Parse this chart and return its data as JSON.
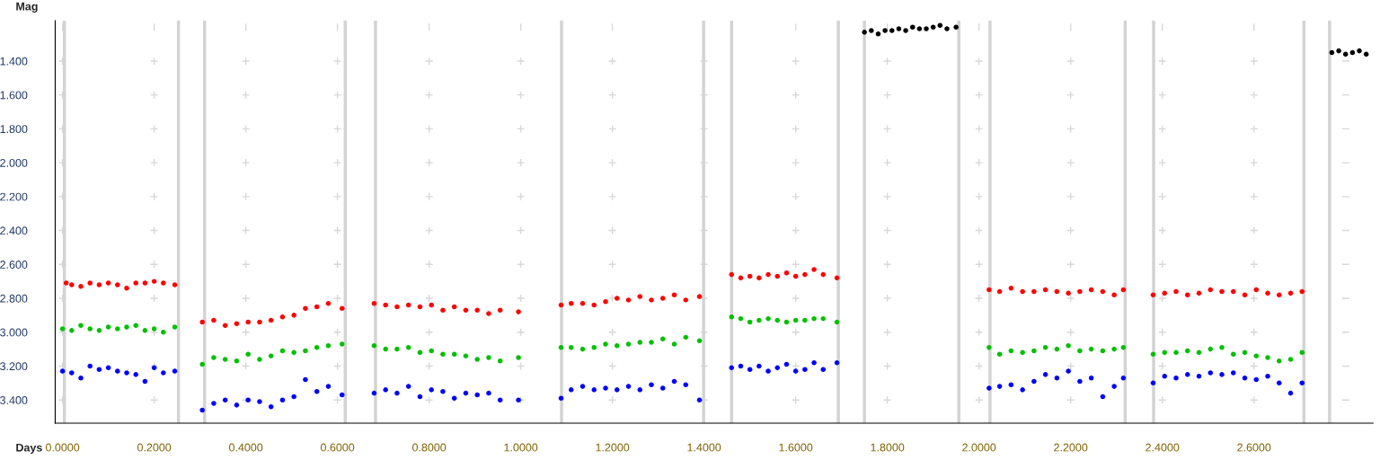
{
  "chart_data": {
    "type": "scatter",
    "xlabel": "Days",
    "ylabel": "Mag",
    "marker": "circle",
    "grid": true,
    "legend": false,
    "xlim": [
      -0.016,
      2.86
    ],
    "ylim": [
      3.537,
      1.162
    ],
    "xticks": [
      {
        "value": 0,
        "label": "0.0000"
      },
      {
        "value": 0.2,
        "label": "0.2000"
      },
      {
        "value": 0.4,
        "label": "0.4000"
      },
      {
        "value": 0.6,
        "label": "0.6000"
      },
      {
        "value": 0.8,
        "label": "0.8000"
      },
      {
        "value": 1.0,
        "label": "1.0000"
      },
      {
        "value": 1.2,
        "label": "1.2000"
      },
      {
        "value": 1.4,
        "label": "1.4000"
      },
      {
        "value": 1.6,
        "label": "1.6000"
      },
      {
        "value": 1.8,
        "label": "1.8000"
      },
      {
        "value": 2.0,
        "label": "2.0000"
      },
      {
        "value": 2.2,
        "label": "2.2000"
      },
      {
        "value": 2.4,
        "label": "2.4000"
      },
      {
        "value": 2.6,
        "label": "2.6000"
      }
    ],
    "yticks": [
      {
        "value": 1.4,
        "label": "1.400"
      },
      {
        "value": 1.6,
        "label": "1.600"
      },
      {
        "value": 1.8,
        "label": "1.800"
      },
      {
        "value": 2.0,
        "label": "2.000"
      },
      {
        "value": 2.2,
        "label": "2.200"
      },
      {
        "value": 2.4,
        "label": "2.400"
      },
      {
        "value": 2.6,
        "label": "2.600"
      },
      {
        "value": 2.8,
        "label": "2.800"
      },
      {
        "value": 3.0,
        "label": "3.000"
      },
      {
        "value": 3.2,
        "label": "3.200"
      },
      {
        "value": 3.4,
        "label": "3.400"
      }
    ],
    "ref_lines": [
      {
        "axis": "x",
        "value": 0.004,
        "color": "#d3d3d3"
      },
      {
        "axis": "x",
        "value": 0.253,
        "color": "#d3d3d3"
      },
      {
        "axis": "x",
        "value": 0.31,
        "color": "#d3d3d3"
      },
      {
        "axis": "x",
        "value": 0.617,
        "color": "#d3d3d3"
      },
      {
        "axis": "x",
        "value": 0.683,
        "color": "#d3d3d3"
      },
      {
        "axis": "x",
        "value": 1.089,
        "color": "#d3d3d3"
      },
      {
        "axis": "x",
        "value": 1.399,
        "color": "#d3d3d3"
      },
      {
        "axis": "x",
        "value": 1.46,
        "color": "#d3d3d3"
      },
      {
        "axis": "x",
        "value": 1.693,
        "color": "#d3d3d3"
      },
      {
        "axis": "x",
        "value": 1.75,
        "color": "#d3d3d3"
      },
      {
        "axis": "x",
        "value": 1.956,
        "color": "#d3d3d3"
      },
      {
        "axis": "x",
        "value": 2.024,
        "color": "#d3d3d3"
      },
      {
        "axis": "x",
        "value": 2.319,
        "color": "#d3d3d3"
      },
      {
        "axis": "x",
        "value": 2.381,
        "color": "#d3d3d3"
      },
      {
        "axis": "x",
        "value": 2.709,
        "color": "#d3d3d3"
      },
      {
        "axis": "x",
        "value": 2.765,
        "color": "#d3d3d3"
      }
    ],
    "series": [
      {
        "color": "#ff0000",
        "x": [
          0.008,
          0.02,
          0.04,
          0.06,
          0.08,
          0.1,
          0.12,
          0.14,
          0.16,
          0.18,
          0.2,
          0.22,
          0.245,
          0.305,
          0.33,
          0.355,
          0.38,
          0.405,
          0.43,
          0.455,
          0.48,
          0.505,
          0.53,
          0.555,
          0.58,
          0.61,
          0.68,
          0.705,
          0.73,
          0.755,
          0.78,
          0.805,
          0.83,
          0.855,
          0.88,
          0.905,
          0.93,
          0.955,
          0.995,
          1.088,
          1.11,
          1.135,
          1.16,
          1.185,
          1.21,
          1.235,
          1.26,
          1.285,
          1.31,
          1.335,
          1.36,
          1.39,
          1.46,
          1.48,
          1.5,
          1.52,
          1.54,
          1.56,
          1.58,
          1.6,
          1.62,
          1.64,
          1.66,
          1.69,
          2.022,
          2.045,
          2.07,
          2.095,
          2.12,
          2.145,
          2.17,
          2.195,
          2.22,
          2.245,
          2.27,
          2.295,
          2.315,
          2.38,
          2.405,
          2.43,
          2.455,
          2.48,
          2.505,
          2.53,
          2.555,
          2.58,
          2.605,
          2.63,
          2.655,
          2.68,
          2.705
        ],
        "values": [
          2.71,
          2.72,
          2.73,
          2.71,
          2.72,
          2.71,
          2.72,
          2.74,
          2.71,
          2.71,
          2.7,
          2.71,
          2.72,
          2.94,
          2.93,
          2.96,
          2.95,
          2.94,
          2.94,
          2.93,
          2.91,
          2.9,
          2.86,
          2.85,
          2.83,
          2.86,
          2.83,
          2.84,
          2.85,
          2.84,
          2.85,
          2.84,
          2.87,
          2.85,
          2.87,
          2.87,
          2.89,
          2.87,
          2.88,
          2.84,
          2.83,
          2.83,
          2.84,
          2.82,
          2.8,
          2.81,
          2.79,
          2.81,
          2.8,
          2.78,
          2.81,
          2.79,
          2.66,
          2.68,
          2.67,
          2.68,
          2.66,
          2.67,
          2.65,
          2.67,
          2.66,
          2.63,
          2.66,
          2.68,
          2.75,
          2.76,
          2.74,
          2.76,
          2.76,
          2.75,
          2.76,
          2.77,
          2.76,
          2.75,
          2.76,
          2.78,
          2.75,
          2.78,
          2.77,
          2.76,
          2.78,
          2.77,
          2.75,
          2.76,
          2.76,
          2.78,
          2.75,
          2.77,
          2.78,
          2.77,
          2.76
        ]
      },
      {
        "color": "#00c000",
        "x": [
          0.0,
          0.02,
          0.04,
          0.06,
          0.08,
          0.1,
          0.12,
          0.14,
          0.16,
          0.18,
          0.2,
          0.22,
          0.245,
          0.305,
          0.33,
          0.355,
          0.38,
          0.405,
          0.43,
          0.455,
          0.48,
          0.505,
          0.53,
          0.555,
          0.58,
          0.61,
          0.68,
          0.705,
          0.73,
          0.755,
          0.78,
          0.805,
          0.83,
          0.855,
          0.88,
          0.905,
          0.93,
          0.955,
          0.995,
          1.088,
          1.11,
          1.135,
          1.16,
          1.185,
          1.21,
          1.235,
          1.26,
          1.285,
          1.31,
          1.335,
          1.36,
          1.39,
          1.46,
          1.48,
          1.5,
          1.52,
          1.54,
          1.56,
          1.58,
          1.6,
          1.62,
          1.64,
          1.66,
          1.69,
          2.022,
          2.045,
          2.07,
          2.095,
          2.12,
          2.145,
          2.17,
          2.195,
          2.22,
          2.245,
          2.27,
          2.295,
          2.315,
          2.38,
          2.405,
          2.43,
          2.455,
          2.48,
          2.505,
          2.53,
          2.555,
          2.58,
          2.605,
          2.63,
          2.655,
          2.68,
          2.705
        ],
        "values": [
          2.98,
          2.99,
          2.96,
          2.98,
          2.99,
          2.97,
          2.98,
          2.97,
          2.96,
          2.99,
          2.98,
          3.0,
          2.97,
          3.19,
          3.15,
          3.16,
          3.17,
          3.13,
          3.16,
          3.14,
          3.11,
          3.12,
          3.11,
          3.09,
          3.08,
          3.07,
          3.08,
          3.1,
          3.1,
          3.09,
          3.12,
          3.11,
          3.13,
          3.13,
          3.14,
          3.16,
          3.15,
          3.17,
          3.15,
          3.09,
          3.09,
          3.1,
          3.09,
          3.07,
          3.08,
          3.07,
          3.06,
          3.06,
          3.04,
          3.07,
          3.03,
          3.05,
          2.91,
          2.92,
          2.94,
          2.93,
          2.92,
          2.93,
          2.94,
          2.93,
          2.93,
          2.92,
          2.92,
          2.94,
          3.09,
          3.13,
          3.11,
          3.12,
          3.11,
          3.09,
          3.1,
          3.08,
          3.11,
          3.1,
          3.11,
          3.1,
          3.09,
          3.13,
          3.12,
          3.12,
          3.11,
          3.12,
          3.1,
          3.09,
          3.13,
          3.12,
          3.14,
          3.15,
          3.17,
          3.16,
          3.12
        ]
      },
      {
        "color": "#0000ff",
        "x": [
          0.0,
          0.02,
          0.04,
          0.06,
          0.08,
          0.1,
          0.12,
          0.14,
          0.16,
          0.18,
          0.2,
          0.22,
          0.245,
          0.305,
          0.33,
          0.355,
          0.38,
          0.405,
          0.43,
          0.455,
          0.48,
          0.505,
          0.53,
          0.555,
          0.58,
          0.61,
          0.68,
          0.705,
          0.73,
          0.755,
          0.78,
          0.805,
          0.83,
          0.855,
          0.88,
          0.905,
          0.93,
          0.955,
          0.995,
          1.088,
          1.11,
          1.135,
          1.16,
          1.185,
          1.21,
          1.235,
          1.26,
          1.285,
          1.31,
          1.335,
          1.36,
          1.39,
          1.46,
          1.48,
          1.5,
          1.52,
          1.54,
          1.56,
          1.58,
          1.6,
          1.62,
          1.64,
          1.66,
          1.69,
          2.022,
          2.045,
          2.07,
          2.095,
          2.12,
          2.145,
          2.17,
          2.195,
          2.22,
          2.245,
          2.27,
          2.295,
          2.315,
          2.38,
          2.405,
          2.43,
          2.455,
          2.48,
          2.505,
          2.53,
          2.555,
          2.58,
          2.605,
          2.63,
          2.655,
          2.68,
          2.705
        ],
        "values": [
          3.23,
          3.24,
          3.27,
          3.2,
          3.22,
          3.21,
          3.23,
          3.24,
          3.25,
          3.29,
          3.21,
          3.24,
          3.23,
          3.46,
          3.42,
          3.4,
          3.43,
          3.4,
          3.41,
          3.44,
          3.4,
          3.38,
          3.28,
          3.35,
          3.32,
          3.37,
          3.36,
          3.34,
          3.36,
          3.32,
          3.38,
          3.34,
          3.35,
          3.39,
          3.36,
          3.37,
          3.36,
          3.4,
          3.4,
          3.39,
          3.34,
          3.32,
          3.34,
          3.33,
          3.34,
          3.32,
          3.34,
          3.31,
          3.33,
          3.29,
          3.31,
          3.4,
          3.21,
          3.2,
          3.22,
          3.2,
          3.23,
          3.21,
          3.19,
          3.23,
          3.22,
          3.18,
          3.22,
          3.18,
          3.33,
          3.32,
          3.31,
          3.34,
          3.29,
          3.25,
          3.27,
          3.23,
          3.29,
          3.27,
          3.38,
          3.32,
          3.27,
          3.3,
          3.26,
          3.27,
          3.25,
          3.26,
          3.24,
          3.25,
          3.24,
          3.27,
          3.28,
          3.26,
          3.3,
          3.36,
          3.3
        ]
      },
      {
        "color": "#000000",
        "x": [
          1.75,
          1.765,
          1.78,
          1.795,
          1.81,
          1.825,
          1.84,
          1.855,
          1.87,
          1.885,
          1.9,
          1.915,
          1.93,
          1.95,
          2.77,
          2.785,
          2.8,
          2.815,
          2.83,
          2.845
        ],
        "values": [
          1.23,
          1.22,
          1.24,
          1.22,
          1.22,
          1.21,
          1.22,
          1.2,
          1.21,
          1.21,
          1.2,
          1.19,
          1.21,
          1.2,
          1.35,
          1.34,
          1.36,
          1.35,
          1.34,
          1.36
        ]
      }
    ]
  }
}
